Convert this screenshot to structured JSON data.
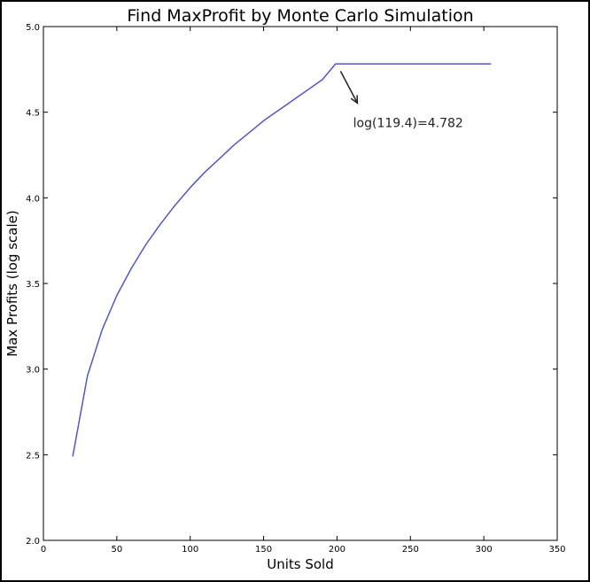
{
  "chart_data": {
    "type": "line",
    "title": "Find MaxProfit by Monte Carlo Simulation",
    "xlabel": "Units Sold",
    "ylabel": "Max Profits (log scale)",
    "xlim": [
      0,
      350
    ],
    "ylim": [
      2.0,
      5.0
    ],
    "xticks": [
      0,
      50,
      100,
      150,
      200,
      250,
      300,
      350
    ],
    "yticks": [
      2.0,
      2.5,
      3.0,
      3.5,
      4.0,
      4.5,
      5.0
    ],
    "xtick_labels": [
      "0",
      "50",
      "100",
      "150",
      "200",
      "250",
      "300",
      "350"
    ],
    "ytick_labels": [
      "2.0",
      "2.5",
      "3.0",
      "3.5",
      "4.0",
      "4.5",
      "5.0"
    ],
    "grid": false,
    "series": [
      {
        "color": "#5555cc",
        "x": [
          20,
          30,
          40,
          50,
          60,
          70,
          80,
          90,
          100,
          110,
          120,
          130,
          140,
          150,
          160,
          170,
          180,
          190,
          199,
          210,
          220,
          240,
          260,
          280,
          305
        ],
        "y": [
          2.49,
          2.96,
          3.23,
          3.43,
          3.59,
          3.73,
          3.85,
          3.96,
          4.06,
          4.15,
          4.23,
          4.31,
          4.38,
          4.45,
          4.51,
          4.57,
          4.63,
          4.69,
          4.782,
          4.782,
          4.782,
          4.782,
          4.782,
          4.782,
          4.782
        ]
      }
    ],
    "annotation": {
      "text": "log(119.4)=4.782",
      "point": [
        200,
        4.76
      ],
      "text_pos": [
        211,
        4.44
      ]
    }
  }
}
